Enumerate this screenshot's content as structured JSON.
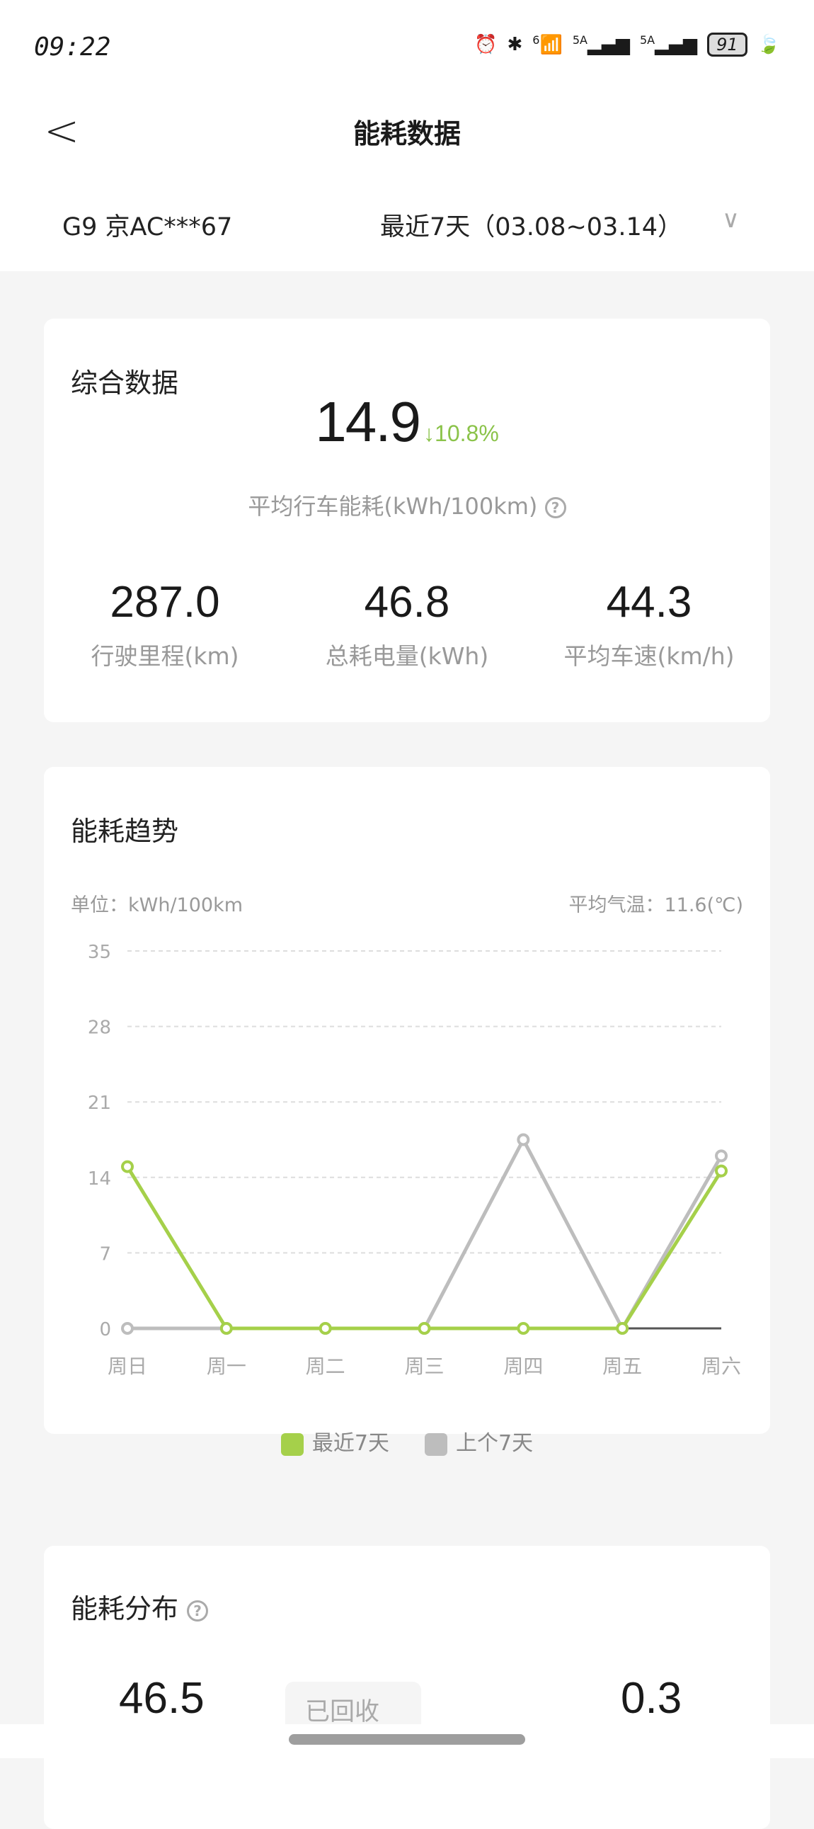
{
  "status_bar": {
    "time": "09:22",
    "battery": "91",
    "network1": "5A",
    "network2": "5A",
    "wifi_label": "6"
  },
  "header": {
    "title": "能耗数据",
    "back_icon": "chevron-left-icon"
  },
  "selector": {
    "vehicle": "G9 京AC***67",
    "range": "最近7天（03.08~03.14）"
  },
  "summary": {
    "title": "综合数据",
    "avg_consumption": "14.9",
    "change": "10.8%",
    "change_direction": "down",
    "change_color": "#8bc34a",
    "avg_label": "平均行车能耗(kWh/100km)",
    "stats": [
      {
        "value": "287.0",
        "label": "行驶里程(km)"
      },
      {
        "value": "46.8",
        "label": "总耗电量(kWh)"
      },
      {
        "value": "44.3",
        "label": "平均车速(km/h)"
      }
    ]
  },
  "trend": {
    "title": "能耗趋势",
    "unit": "单位：kWh/100km",
    "temperature": "平均气温：11.6(℃)"
  },
  "chart_data": {
    "type": "line",
    "categories": [
      "周日",
      "周一",
      "周二",
      "周三",
      "周四",
      "周五",
      "周六"
    ],
    "ylim": [
      0,
      35
    ],
    "yticks": [
      "0",
      "7",
      "14",
      "21",
      "28",
      "35"
    ],
    "grid": true,
    "legend": "bottom",
    "series": [
      {
        "name": "最近7天",
        "color": "#a5d04a",
        "values": [
          15.0,
          0,
          0,
          0,
          0,
          0,
          14.6
        ]
      },
      {
        "name": "上个7天",
        "color": "#bdbdbd",
        "values": [
          0,
          0,
          0,
          0,
          17.5,
          0,
          16.0
        ]
      }
    ]
  },
  "distribution": {
    "title": "能耗分布",
    "left_value": "46.5",
    "chip": "已回收",
    "right_value": "0.3"
  }
}
